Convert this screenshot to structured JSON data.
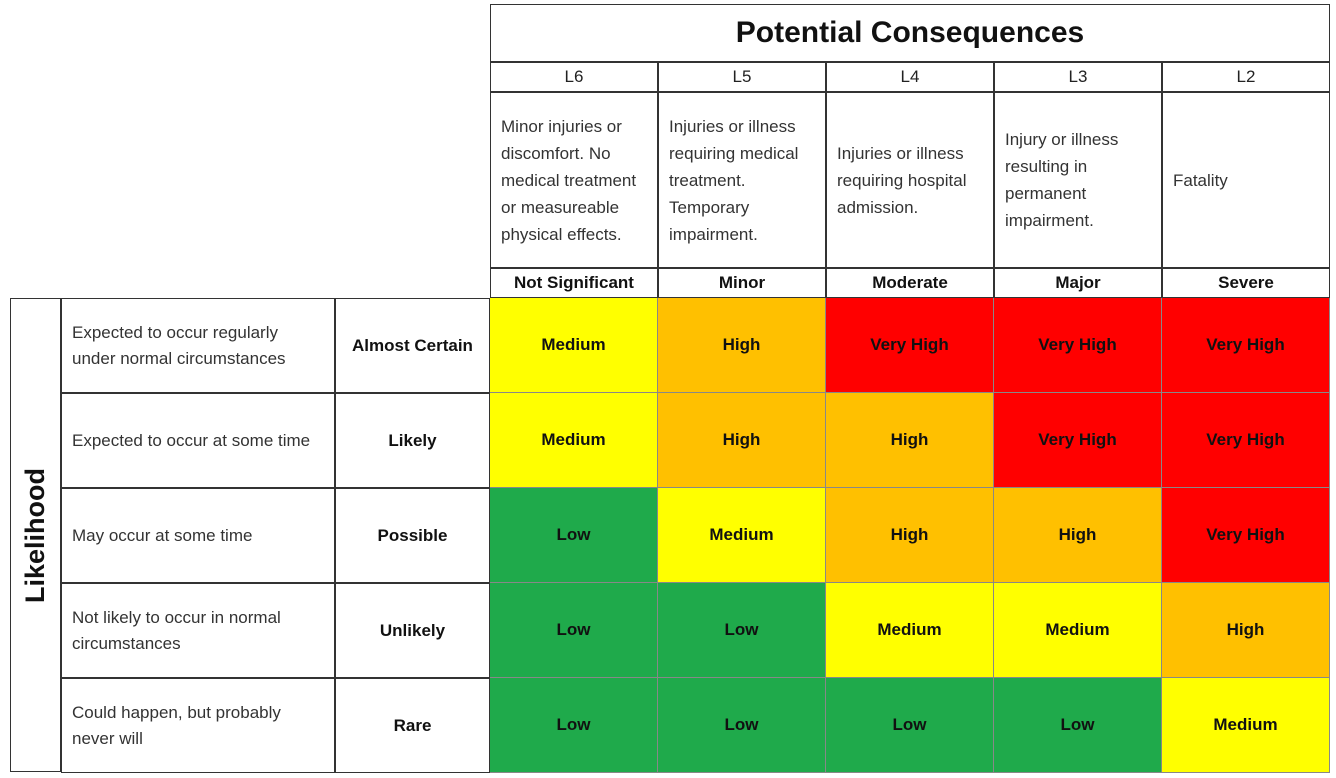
{
  "title": "Potential Consequences",
  "likelihood_label": "Likelihood",
  "consequences": [
    {
      "level": "L6",
      "description": "Minor injuries or discomfort. No medical treatment or measureable physical effects.",
      "severity": "Not Significant"
    },
    {
      "level": "L5",
      "description": "Injuries or illness requiring medical treatment. Temporary impairment.",
      "severity": "Minor"
    },
    {
      "level": "L4",
      "description": "Injuries or illness requiring hospital admission.",
      "severity": "Moderate"
    },
    {
      "level": "L3",
      "description": "Injury or illness resulting in permanent impairment.",
      "severity": "Major"
    },
    {
      "level": "L2",
      "description": "Fatality",
      "severity": "Severe"
    }
  ],
  "likelihoods": [
    {
      "description": "Expected to occur regularly under normal circumstances",
      "label": "Almost Certain",
      "ratings": [
        "Medium",
        "High",
        "Very High",
        "Very High",
        "Very High"
      ]
    },
    {
      "description": "Expected to occur at some time",
      "label": "Likely",
      "ratings": [
        "Medium",
        "High",
        "High",
        "Very High",
        "Very High"
      ]
    },
    {
      "description": "May occur at some time",
      "label": "Possible",
      "ratings": [
        "Low",
        "Medium",
        "High",
        "High",
        "Very High"
      ]
    },
    {
      "description": "Not likely to occur in normal circumstances",
      "label": "Unlikely",
      "ratings": [
        "Low",
        "Low",
        "Medium",
        "Medium",
        "High"
      ]
    },
    {
      "description": "Could happen, but probably never will",
      "label": "Rare",
      "ratings": [
        "Low",
        "Low",
        "Low",
        "Low",
        "Medium"
      ]
    }
  ],
  "rating_colors": {
    "Low": "#1faa4b",
    "Medium": "#ffff00",
    "High": "#ffc000",
    "Very High": "#ff0000"
  }
}
